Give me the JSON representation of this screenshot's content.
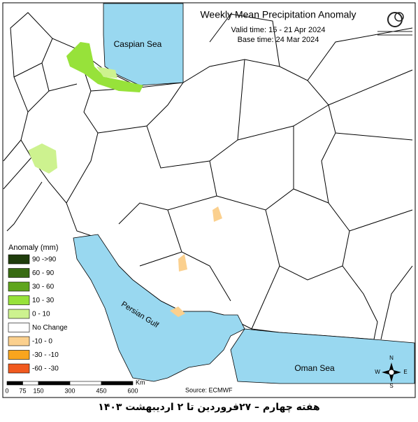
{
  "header": {
    "title": "Weekly Mean Precipitation Anomaly",
    "valid_time": "Valid time: 15 - 21 Apr 2024",
    "base_time": "Base time: 24 Mar 2024"
  },
  "seas": [
    "Caspian Sea",
    "Persian Gulf",
    "Oman Sea"
  ],
  "legend": {
    "title": "Anomaly (mm)",
    "items": [
      {
        "label": "90 ->90",
        "color": "#1f3d0c"
      },
      {
        "label": "60 - 90",
        "color": "#386b12"
      },
      {
        "label": "30 - 60",
        "color": "#5fa51d"
      },
      {
        "label": "10 - 30",
        "color": "#97e23a"
      },
      {
        "label": "0 - 10",
        "color": "#cdf28f"
      },
      {
        "label": "No Change",
        "color": "#ffffff"
      },
      {
        "label": "-10 - 0",
        "color": "#fbd08e"
      },
      {
        "label": "-30 - -10",
        "color": "#f9a51e"
      },
      {
        "label": "-60 - -30",
        "color": "#f15a1f"
      }
    ]
  },
  "scale_bar": {
    "ticks": [
      0,
      75,
      150,
      300,
      450,
      600
    ],
    "unit": "Km"
  },
  "source": "Source: ECMWF",
  "compass": [
    "N",
    "E",
    "S",
    "W"
  ],
  "caption": "هفته چهارم – ۲۷فروردین تا ۲ اردیبهشت ۱۴۰۳"
}
